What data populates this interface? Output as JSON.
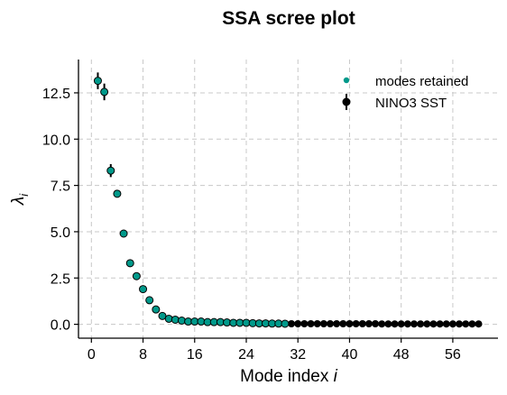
{
  "chart_data": {
    "type": "scatter",
    "title": "SSA scree plot",
    "xlabel": "Mode index",
    "xlabel_var": "i",
    "ylabel_base": "λ",
    "ylabel_sub": "i",
    "xlim": [
      -2,
      63
    ],
    "ylim": [
      -0.75,
      14.3
    ],
    "xticks": [
      0,
      8,
      16,
      24,
      32,
      40,
      48,
      56
    ],
    "yticks": [
      0.0,
      2.5,
      5.0,
      7.5,
      10.0,
      12.5
    ],
    "ytick_labels": [
      "0.0",
      "2.5",
      "5.0",
      "7.5",
      "10.0",
      "12.5"
    ],
    "grid": true,
    "legend_position": "top-right",
    "series": [
      {
        "name": "NINO3 SST",
        "color": "#000000",
        "x": [
          1,
          2,
          3,
          4,
          5,
          6,
          7,
          8,
          9,
          10,
          11,
          12,
          13,
          14,
          15,
          16,
          17,
          18,
          19,
          20,
          21,
          22,
          23,
          24,
          25,
          26,
          27,
          28,
          29,
          30,
          31,
          32,
          33,
          34,
          35,
          36,
          37,
          38,
          39,
          40,
          41,
          42,
          43,
          44,
          45,
          46,
          47,
          48,
          49,
          50,
          51,
          52,
          53,
          54,
          55,
          56,
          57,
          58,
          59,
          60
        ],
        "y": [
          13.15,
          12.55,
          8.3,
          7.05,
          4.9,
          3.3,
          2.6,
          1.9,
          1.3,
          0.8,
          0.45,
          0.3,
          0.25,
          0.2,
          0.15,
          0.15,
          0.15,
          0.12,
          0.12,
          0.12,
          0.1,
          0.08,
          0.08,
          0.08,
          0.06,
          0.05,
          0.05,
          0.04,
          0.04,
          0.03,
          0.03,
          0.03,
          0.03,
          0.03,
          0.03,
          0.03,
          0.03,
          0.03,
          0.03,
          0.03,
          0.03,
          0.03,
          0.03,
          0.03,
          0.02,
          0.02,
          0.02,
          0.02,
          0.02,
          0.02,
          0.02,
          0.02,
          0.02,
          0.02,
          0.02,
          0.02,
          0.02,
          0.02,
          0.02,
          0.02
        ],
        "err": [
          0.45,
          0.45,
          0.35,
          0.2,
          0.15,
          0.12,
          0.1,
          0.08,
          0.06,
          0.05,
          0.04,
          0.03,
          0.03,
          0.02,
          0.02,
          0.02,
          0.02,
          0.02,
          0.02,
          0.02,
          0.02,
          0.02,
          0.02,
          0.02,
          0.02,
          0.02,
          0.02,
          0.02,
          0.02,
          0.02,
          0.02,
          0.02,
          0.02,
          0.02,
          0.02,
          0.02,
          0.02,
          0.02,
          0.02,
          0.02,
          0.02,
          0.02,
          0.02,
          0.02,
          0.02,
          0.02,
          0.02,
          0.02,
          0.02,
          0.02,
          0.02,
          0.02,
          0.02,
          0.02,
          0.02,
          0.02,
          0.02,
          0.02,
          0.02,
          0.02
        ]
      },
      {
        "name": "modes retained",
        "color": "#00998a",
        "x": [
          1,
          2,
          3,
          4,
          5,
          6,
          7,
          8,
          9,
          10,
          11,
          12,
          13,
          14,
          15,
          16,
          17,
          18,
          19,
          20,
          21,
          22,
          23,
          24,
          25,
          26,
          27,
          28,
          29,
          30
        ],
        "y": [
          13.15,
          12.55,
          8.3,
          7.05,
          4.9,
          3.3,
          2.6,
          1.9,
          1.3,
          0.8,
          0.45,
          0.3,
          0.25,
          0.2,
          0.15,
          0.15,
          0.15,
          0.12,
          0.12,
          0.12,
          0.1,
          0.08,
          0.08,
          0.08,
          0.06,
          0.05,
          0.05,
          0.04,
          0.04,
          0.03
        ]
      }
    ]
  }
}
